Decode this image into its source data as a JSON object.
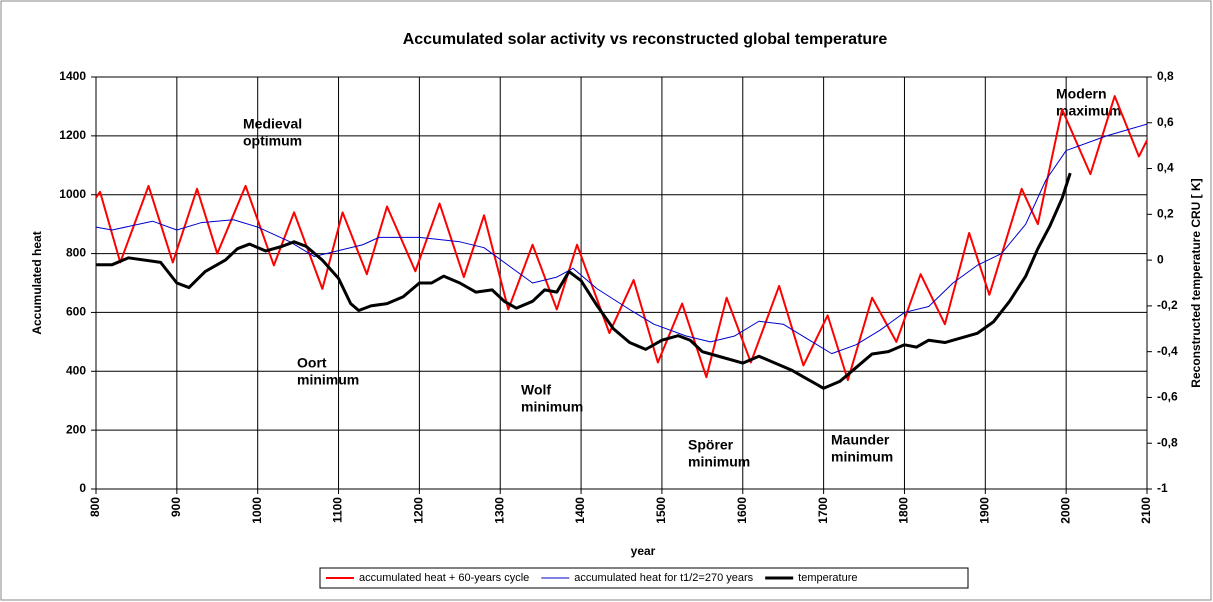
{
  "chart_data": {
    "type": "line",
    "title": "Accumulated solar activity vs reconstructed global temperature",
    "x_label": "year",
    "y_label": "Accumulated heat",
    "y2_label": "Reconstructed temperature CRU [ K]",
    "xlim": [
      800,
      2100
    ],
    "xticks": [
      800,
      900,
      1000,
      1100,
      1200,
      1300,
      1400,
      1500,
      1600,
      1700,
      1800,
      1900,
      2000,
      2100
    ],
    "ylim": [
      0,
      1400
    ],
    "yticks": [
      0,
      200,
      400,
      600,
      800,
      1000,
      1200,
      1400
    ],
    "y2lim": [
      -1,
      0.8
    ],
    "y2ticks": [
      -1,
      {
        "value": -0.8,
        "label": "-0,8"
      },
      {
        "value": -0.6,
        "label": "-0,6"
      },
      {
        "value": -0.4,
        "label": "-0,4"
      },
      {
        "value": -0.2,
        "label": "-0,2"
      },
      0,
      {
        "value": 0.2,
        "label": "0,2"
      },
      {
        "value": 0.4,
        "label": "0,4"
      },
      {
        "value": 0.6,
        "label": "0,6"
      },
      {
        "value": 0.8,
        "label": "0,8"
      }
    ],
    "grid": true,
    "legend": "bottom",
    "annotations": [
      [
        "Medieval",
        "optimum"
      ],
      [
        "Oort",
        "minimum"
      ],
      [
        "Wolf",
        "minimum"
      ],
      [
        "Spörer",
        "minimum"
      ],
      [
        "Maunder",
        "minimum"
      ],
      [
        "Modern",
        "maximum"
      ]
    ],
    "series": [
      {
        "name": "accumulated heat + 60-years cycle",
        "color": "#ff0000",
        "width": 2,
        "x": [
          800,
          805,
          830,
          865,
          895,
          925,
          950,
          985,
          1020,
          1045,
          1080,
          1105,
          1135,
          1160,
          1195,
          1225,
          1255,
          1280,
          1310,
          1340,
          1370,
          1395,
          1435,
          1465,
          1495,
          1525,
          1555,
          1580,
          1610,
          1645,
          1675,
          1705,
          1730,
          1760,
          1790,
          1820,
          1850,
          1880,
          1905,
          1945,
          1965,
          1995,
          2030,
          2060,
          2090,
          2100
        ],
        "values": [
          990,
          1010,
          770,
          1030,
          770,
          1020,
          800,
          1030,
          760,
          940,
          680,
          940,
          730,
          960,
          740,
          970,
          720,
          930,
          610,
          830,
          610,
          830,
          530,
          710,
          430,
          630,
          380,
          650,
          430,
          690,
          420,
          590,
          370,
          650,
          500,
          730,
          560,
          870,
          660,
          1020,
          900,
          1290,
          1070,
          1335,
          1130,
          1185
        ]
      },
      {
        "name": "accumulated heat for t1/2=270 years",
        "color": "#0000cc",
        "width": 1,
        "x": [
          800,
          820,
          870,
          900,
          930,
          970,
          1000,
          1040,
          1070,
          1100,
          1130,
          1150,
          1200,
          1250,
          1280,
          1310,
          1340,
          1370,
          1390,
          1420,
          1460,
          1490,
          1530,
          1560,
          1590,
          1620,
          1650,
          1680,
          1710,
          1740,
          1770,
          1800,
          1830,
          1860,
          1890,
          1920,
          1950,
          1975,
          2000,
          2050,
          2100
        ],
        "values": [
          890,
          880,
          910,
          880,
          905,
          915,
          890,
          840,
          790,
          810,
          830,
          855,
          855,
          840,
          820,
          760,
          700,
          720,
          750,
          680,
          610,
          560,
          520,
          500,
          520,
          570,
          560,
          510,
          460,
          490,
          540,
          600,
          620,
          700,
          760,
          800,
          900,
          1050,
          1150,
          1200,
          1240
        ]
      },
      {
        "name": "temperature",
        "color": "#000000",
        "width": 3,
        "axis": "y2",
        "x": [
          800,
          820,
          840,
          880,
          900,
          915,
          935,
          960,
          975,
          990,
          1010,
          1030,
          1045,
          1060,
          1080,
          1100,
          1115,
          1125,
          1140,
          1160,
          1180,
          1200,
          1215,
          1230,
          1250,
          1270,
          1290,
          1305,
          1320,
          1340,
          1355,
          1370,
          1385,
          1400,
          1420,
          1440,
          1460,
          1480,
          1500,
          1520,
          1535,
          1550,
          1570,
          1600,
          1620,
          1640,
          1660,
          1680,
          1700,
          1720,
          1740,
          1760,
          1780,
          1800,
          1815,
          1830,
          1850,
          1870,
          1890,
          1910,
          1930,
          1950,
          1965,
          1980,
          1995,
          2005
        ],
        "values": [
          -0.02,
          -0.02,
          0.01,
          -0.01,
          -0.1,
          -0.12,
          -0.05,
          0.0,
          0.05,
          0.07,
          0.04,
          0.06,
          0.08,
          0.06,
          0.0,
          -0.08,
          -0.19,
          -0.22,
          -0.2,
          -0.19,
          -0.16,
          -0.1,
          -0.1,
          -0.07,
          -0.1,
          -0.14,
          -0.13,
          -0.18,
          -0.21,
          -0.18,
          -0.13,
          -0.14,
          -0.05,
          -0.09,
          -0.2,
          -0.3,
          -0.36,
          -0.39,
          -0.35,
          -0.33,
          -0.35,
          -0.4,
          -0.42,
          -0.45,
          -0.42,
          -0.45,
          -0.48,
          -0.52,
          -0.56,
          -0.53,
          -0.47,
          -0.41,
          -0.4,
          -0.37,
          -0.38,
          -0.35,
          -0.36,
          -0.34,
          -0.32,
          -0.27,
          -0.18,
          -0.07,
          0.05,
          0.15,
          0.27,
          0.38
        ]
      }
    ]
  }
}
